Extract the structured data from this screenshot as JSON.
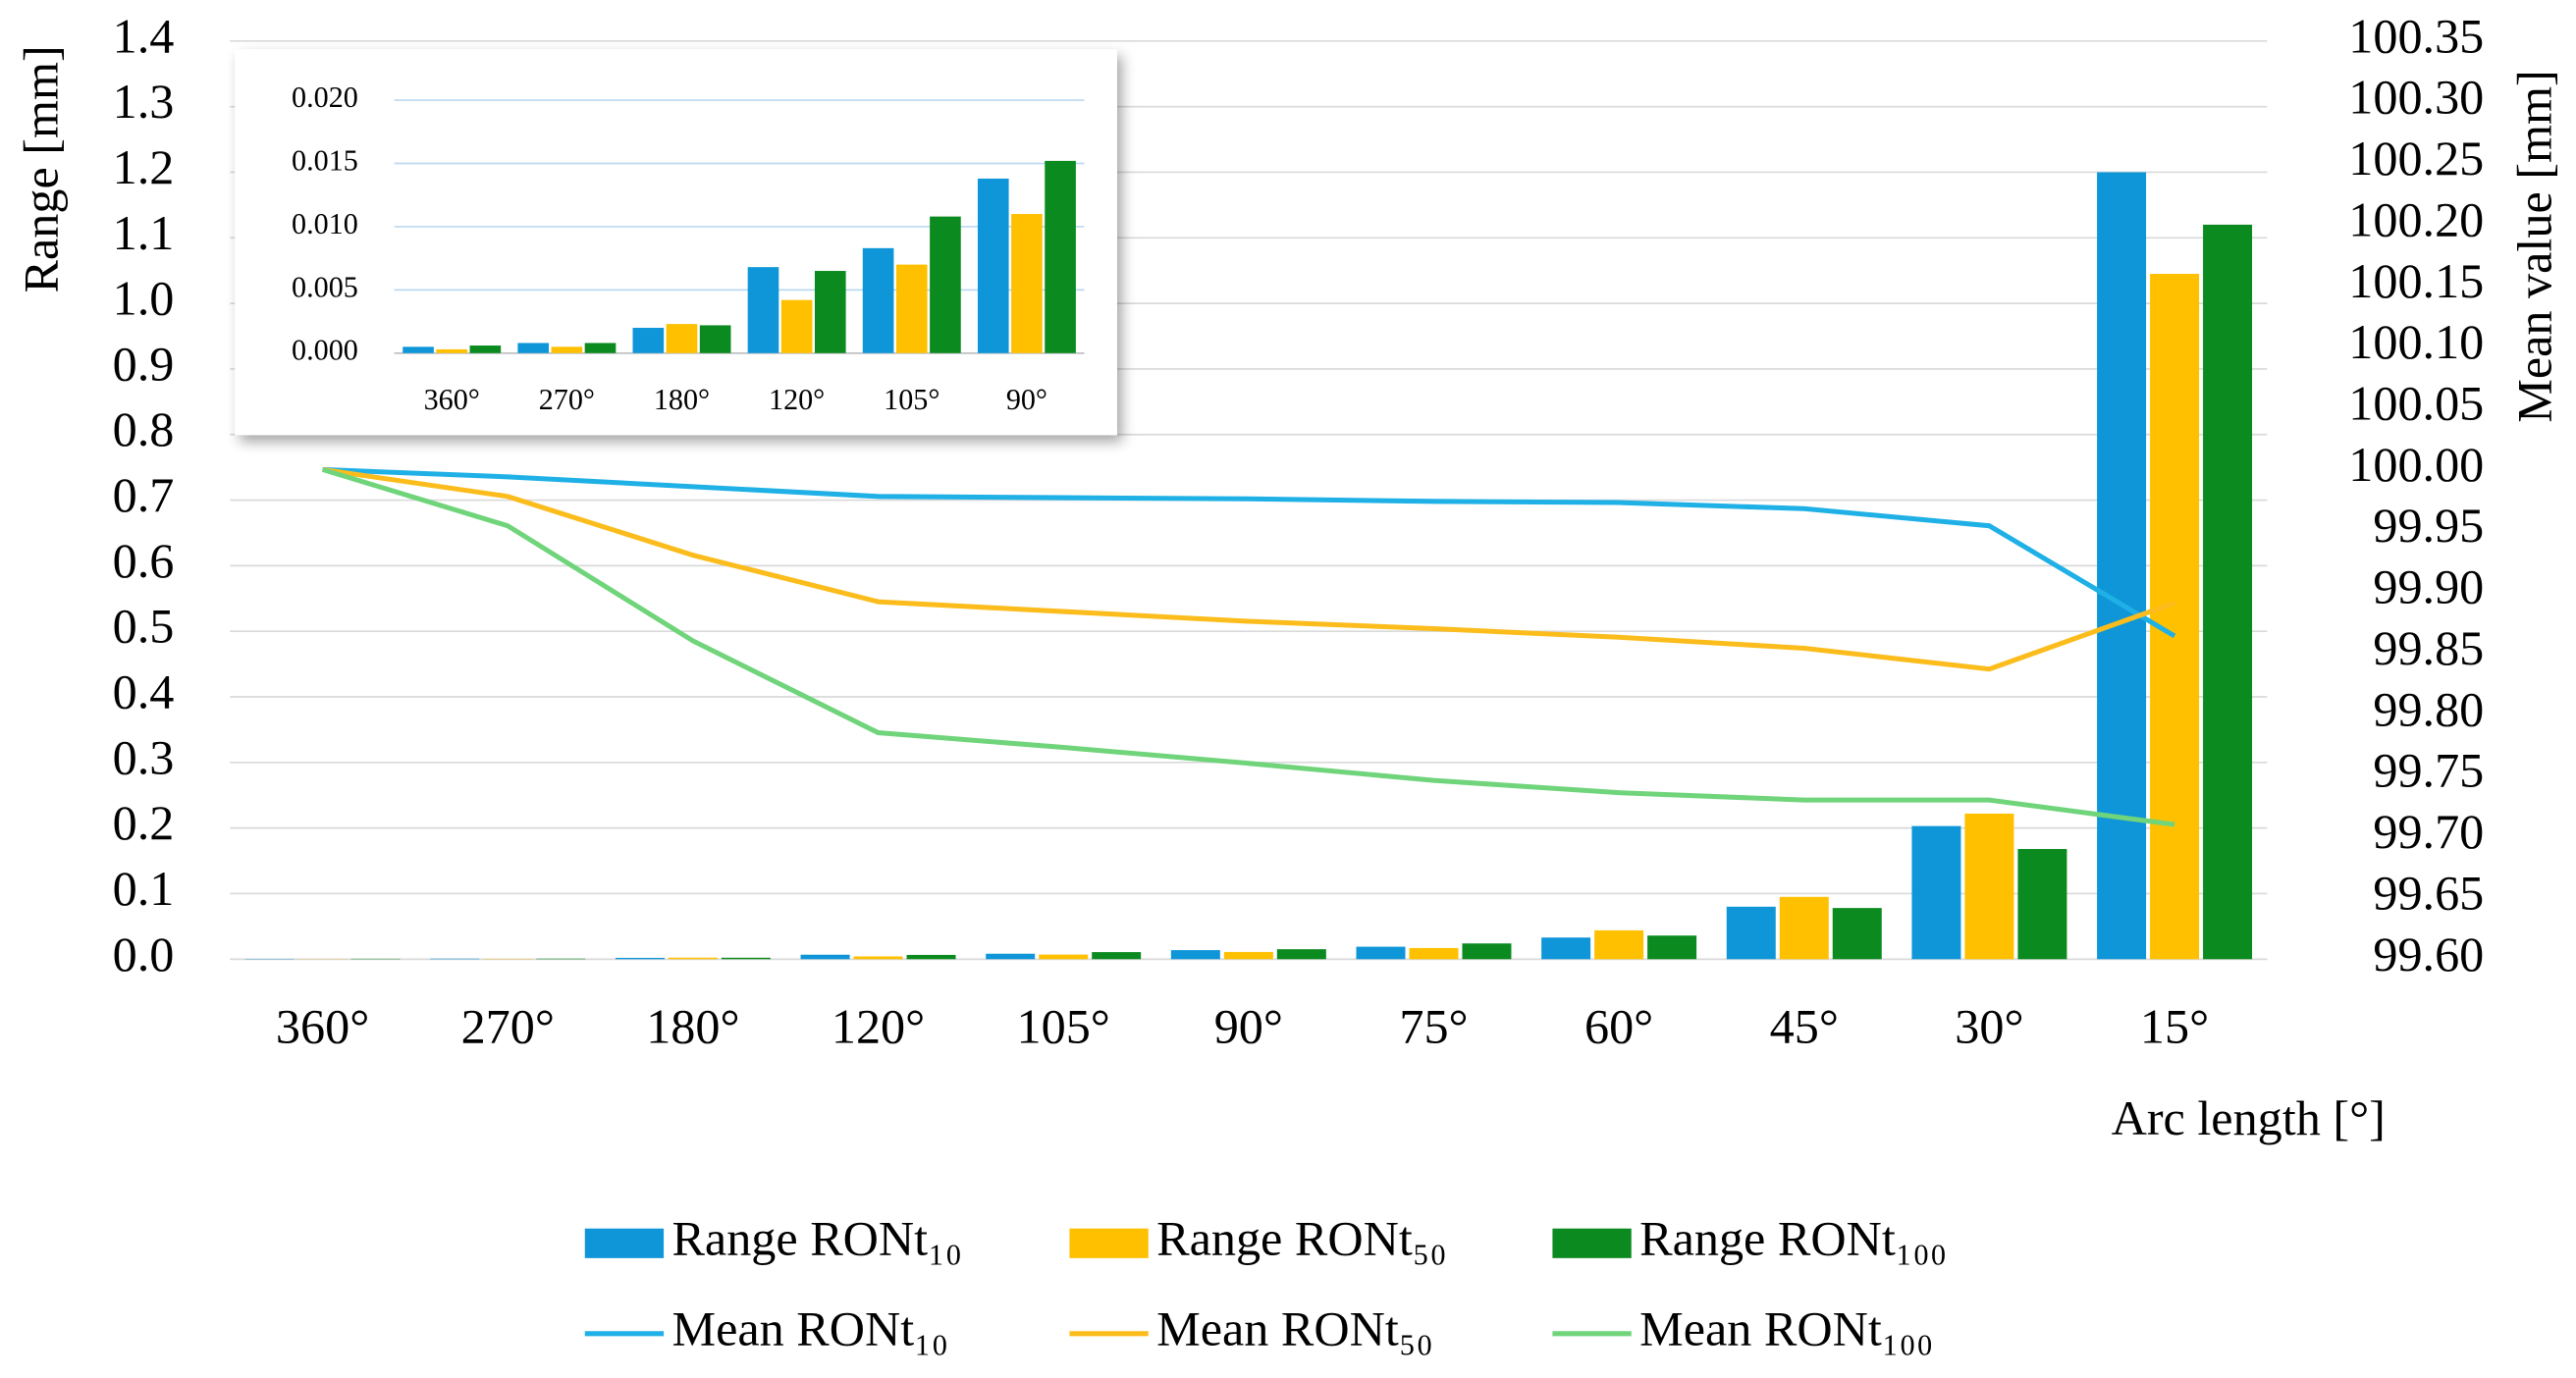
{
  "chart_data": [
    {
      "type": "combo",
      "x_label": "Arc length [°]",
      "y_label": "Range [mm]",
      "y2_label": "Mean value [mm]",
      "categories": [
        "360°",
        "270°",
        "180°",
        "120°",
        "105°",
        "90°",
        "75°",
        "60°",
        "45°",
        "30°",
        "15°"
      ],
      "ylim": [
        0,
        1.4
      ],
      "yticks": [
        {
          "value": 0,
          "label": "0.0"
        },
        0.1,
        0.2,
        0.3,
        0.4,
        0.5,
        0.6,
        0.7,
        0.8,
        0.9,
        {
          "value": 1,
          "label": "1.0"
        },
        1.1,
        1.2,
        1.3,
        1.4
      ],
      "y2lim": [
        99.6,
        100.35
      ],
      "y2ticks": [
        {
          "value": 99.6,
          "label": "99.60"
        },
        99.65,
        {
          "value": 99.7,
          "label": "99.70"
        },
        99.75,
        {
          "value": 99.8,
          "label": "99.80"
        },
        99.85,
        {
          "value": 99.9,
          "label": "99.90"
        },
        99.95,
        {
          "value": 100,
          "label": "100.00"
        },
        100.05,
        {
          "value": 100.1,
          "label": "100.10"
        },
        100.15,
        {
          "value": 100.2,
          "label": "100.20"
        },
        100.25,
        {
          "value": 100.3,
          "label": "100.30"
        },
        100.35
      ],
      "grid": true,
      "legend": "bottom",
      "series": [
        {
          "name": "Range RONt₁₀",
          "type": "bar",
          "color": "#0f96d8",
          "values": [
            0.0005,
            0.0008,
            0.002,
            0.0068,
            0.0083,
            0.0138,
            0.019,
            0.033,
            0.08,
            0.203,
            1.2
          ]
        },
        {
          "name": "Range RONt₅₀",
          "type": "bar",
          "color": "#ffc000",
          "values": [
            0.0003,
            0.0005,
            0.0023,
            0.0042,
            0.007,
            0.011,
            0.017,
            0.044,
            0.095,
            0.222,
            1.045
          ]
        },
        {
          "name": "Range RONt₁₀₀",
          "type": "bar",
          "color": "#0b8a1f",
          "values": [
            0.0006,
            0.0008,
            0.0022,
            0.0065,
            0.0108,
            0.0152,
            0.024,
            0.036,
            0.078,
            0.168,
            1.12
          ]
        },
        {
          "name": "Mean RONt₁₀",
          "type": "line",
          "axis": "y2",
          "color": "#1fb0e6",
          "values": [
            100.0,
            99.994,
            99.986,
            99.978,
            99.977,
            99.976,
            99.974,
            99.973,
            99.968,
            99.954,
            99.864
          ]
        },
        {
          "name": "Mean RONt₅₀",
          "type": "line",
          "axis": "y2",
          "color": "#fbbc1c",
          "values": [
            100.0,
            99.978,
            99.93,
            99.892,
            99.884,
            99.876,
            99.87,
            99.863,
            99.854,
            99.837,
            99.891
          ]
        },
        {
          "name": "Mean RONt₁₀₀",
          "type": "line",
          "axis": "y2",
          "color": "#6fd47a",
          "values": [
            100.0,
            99.954,
            99.86,
            99.785,
            99.773,
            99.76,
            99.746,
            99.736,
            99.73,
            99.73,
            99.71
          ]
        }
      ]
    },
    {
      "type": "bar",
      "categories": [
        "360°",
        "270°",
        "180°",
        "120°",
        "105°",
        "90°"
      ],
      "ylim": [
        0,
        0.02
      ],
      "yticks": [
        {
          "value": 0,
          "label": "0.000"
        },
        {
          "value": 0.005,
          "label": "0.005"
        },
        {
          "value": 0.01,
          "label": "0.010"
        },
        {
          "value": 0.015,
          "label": "0.015"
        },
        {
          "value": 0.02,
          "label": "0.020"
        }
      ],
      "grid": true,
      "series": [
        {
          "type": "bar",
          "color": "#0f96d8",
          "values": [
            0.0005,
            0.0008,
            0.002,
            0.0068,
            0.0083,
            0.0138
          ]
        },
        {
          "type": "bar",
          "color": "#ffc000",
          "values": [
            0.0003,
            0.0005,
            0.0023,
            0.0042,
            0.007,
            0.011
          ]
        },
        {
          "type": "bar",
          "color": "#0b8a1f",
          "values": [
            0.0006,
            0.0008,
            0.0022,
            0.0065,
            0.0108,
            0.0152
          ]
        }
      ]
    }
  ]
}
